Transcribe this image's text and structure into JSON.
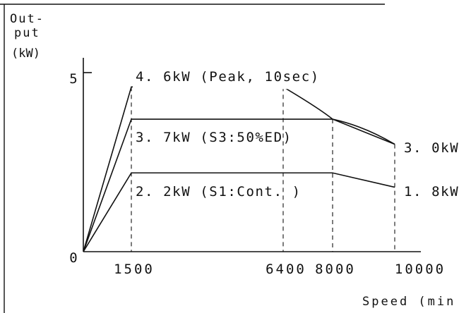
{
  "chart_data": {
    "type": "line",
    "title": "",
    "ylabel_lines": [
      "Out-",
      "put",
      "(kW)"
    ],
    "xlabel": "Speed (min",
    "xlim": [
      0,
      11000
    ],
    "ylim": [
      0,
      6
    ],
    "x_ticks": [
      {
        "value": 1500,
        "label": "1500"
      },
      {
        "value": 6400,
        "label": "6400"
      },
      {
        "value": 8000,
        "label": "8000"
      },
      {
        "value": 10000,
        "label": "10000"
      }
    ],
    "y_ticks": [
      {
        "value": 0,
        "label": "0"
      },
      {
        "value": 5,
        "label": "5"
      }
    ],
    "grid": false,
    "series": [
      {
        "name": "4.6kW (Peak, 10sec)",
        "label": "4. 6kW (Peak, 10sec)",
        "points": [
          [
            0,
            0
          ],
          [
            1500,
            4.6
          ],
          [
            6400,
            4.6
          ],
          [
            8000,
            3.7
          ],
          [
            10000,
            3.0
          ]
        ],
        "end_label": "3. 0kW"
      },
      {
        "name": "3.7kW (S3:50%ED)",
        "label": "3. 7kW (S3:50%ED)",
        "points": [
          [
            0,
            0
          ],
          [
            1500,
            3.7
          ],
          [
            8000,
            3.7
          ],
          [
            10000,
            3.0
          ]
        ],
        "end_label": ""
      },
      {
        "name": "2.2kW (S1:Cont.)",
        "label": "2. 2kW (S1:Cont. )",
        "points": [
          [
            0,
            0
          ],
          [
            1500,
            2.2
          ],
          [
            8000,
            2.2
          ],
          [
            10000,
            1.8
          ]
        ],
        "end_label": "1. 8kW"
      }
    ],
    "guide_lines_x": [
      1500,
      6400,
      8000,
      10000
    ]
  }
}
